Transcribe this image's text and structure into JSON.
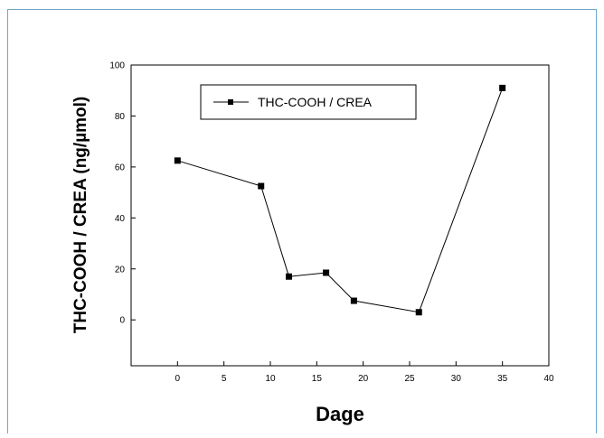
{
  "chart_data": {
    "type": "line",
    "xlabel": "Dage",
    "ylabel": "THC-COOH / CREA (ng/µmol)",
    "xlim": [
      -5,
      40
    ],
    "ylim": [
      -18,
      100
    ],
    "xticks": [
      0,
      5,
      10,
      15,
      20,
      25,
      30,
      35,
      40
    ],
    "yticks": [
      0,
      20,
      40,
      60,
      80,
      100
    ],
    "legend_position": "top-center",
    "grid": false,
    "series": [
      {
        "name": "THC-COOH / CREA",
        "marker": "square",
        "color": "#000000",
        "x": [
          0,
          9,
          12,
          16,
          19,
          26,
          35
        ],
        "y": [
          62.5,
          52.5,
          17,
          18.5,
          7.5,
          3,
          91
        ]
      }
    ]
  }
}
